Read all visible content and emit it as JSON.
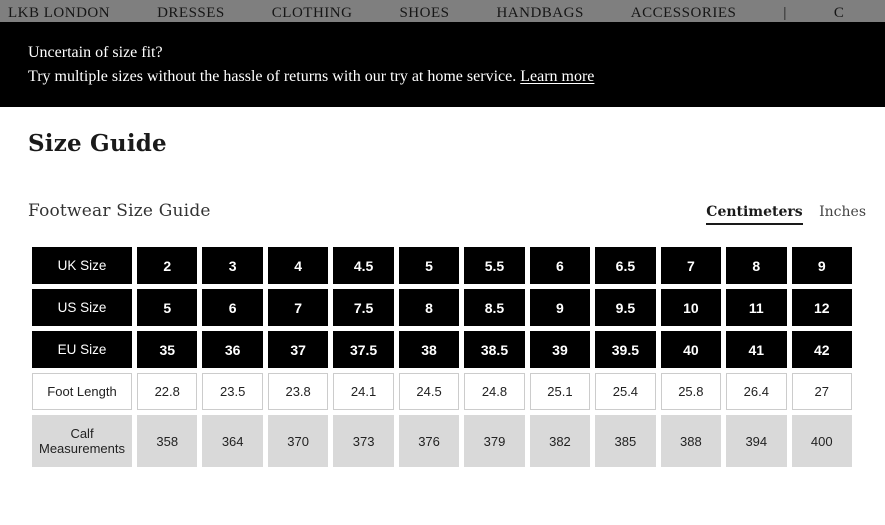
{
  "nav": {
    "items": [
      {
        "label": "LKB LONDON"
      },
      {
        "label": "DRESSES"
      },
      {
        "label": "CLOTHING"
      },
      {
        "label": "SHOES"
      },
      {
        "label": "HANDBAGS"
      },
      {
        "label": "ACCESSORIES"
      },
      {
        "label": "|"
      },
      {
        "label": "C"
      }
    ]
  },
  "banner": {
    "title": "Uncertain of size fit?",
    "message": "Try multiple sizes without the hassle of returns with our try at home service. ",
    "link_label": "Learn more"
  },
  "page": {
    "title": "Size Guide",
    "section_title": "Footwear Size Guide"
  },
  "unit_toggle": {
    "active": "Centimeters",
    "inactive": "Inches"
  },
  "size_table": {
    "rows": [
      {
        "label": "UK Size",
        "style": "dark",
        "values": [
          "2",
          "3",
          "4",
          "4.5",
          "5",
          "5.5",
          "6",
          "6.5",
          "7",
          "8",
          "9"
        ]
      },
      {
        "label": "US Size",
        "style": "dark",
        "values": [
          "5",
          "6",
          "7",
          "7.5",
          "8",
          "8.5",
          "9",
          "9.5",
          "10",
          "11",
          "12"
        ]
      },
      {
        "label": "EU Size",
        "style": "dark",
        "values": [
          "35",
          "36",
          "37",
          "37.5",
          "38",
          "38.5",
          "39",
          "39.5",
          "40",
          "41",
          "42"
        ]
      },
      {
        "label": "Foot Length",
        "style": "light",
        "values": [
          "22.8",
          "23.5",
          "23.8",
          "24.1",
          "24.5",
          "24.8",
          "25.1",
          "25.4",
          "25.8",
          "26.4",
          "27"
        ]
      },
      {
        "label": "Calf Measurements",
        "style": "gray",
        "values": [
          "358",
          "364",
          "370",
          "373",
          "376",
          "379",
          "382",
          "385",
          "388",
          "394",
          "400"
        ]
      }
    ]
  },
  "colors": {
    "nav_bg": "#7f7f7f",
    "banner_bg": "#000000",
    "dark_cell": "#000000",
    "gray_cell": "#d9d9d9",
    "light_border": "#cccccc"
  }
}
